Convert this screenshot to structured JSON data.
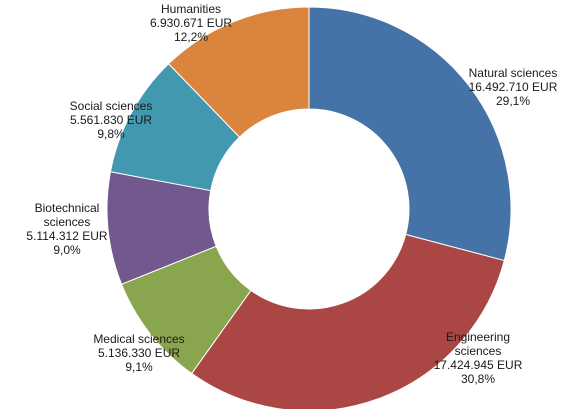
{
  "chart_data": {
    "type": "pie",
    "variant": "donut",
    "title": "",
    "legend": "none",
    "slices": [
      {
        "name": "Natural sciences",
        "amount_label": "16.492.710 EUR",
        "value": 16492710,
        "percent_label": "29,1%",
        "color": "#4572a7"
      },
      {
        "name": "Engineering sciences",
        "amount_label": "17.424.945 EUR",
        "value": 17424945,
        "percent_label": "30,8%",
        "color": "#aa4643"
      },
      {
        "name": "Medical sciences",
        "amount_label": "5.136.330 EUR",
        "value": 5136330,
        "percent_label": "9,1%",
        "color": "#89a54e"
      },
      {
        "name": "Biotechnical sciences",
        "amount_label": "5.114.312 EUR",
        "value": 5114312,
        "percent_label": "9,0%",
        "color": "#71588f"
      },
      {
        "name": "Social sciences",
        "amount_label": "5.561.830 EUR",
        "value": 5561830,
        "percent_label": "9,8%",
        "color": "#4198af"
      },
      {
        "name": "Humanities",
        "amount_label": "6.930.671 EUR",
        "value": 6930671,
        "percent_label": "12,2%",
        "color": "#db843d"
      }
    ],
    "labels": [
      {
        "lines": [
          "Natural sciences",
          "16.492.710 EUR",
          "29,1%"
        ]
      },
      {
        "lines": [
          "Engineering",
          "sciences",
          "17.424.945 EUR",
          "30,8%"
        ]
      },
      {
        "lines": [
          "Medical sciences",
          "5.136.330 EUR",
          "9,1%"
        ]
      },
      {
        "lines": [
          "Biotechnical",
          "sciences",
          "5.114.312 EUR",
          "9,0%"
        ]
      },
      {
        "lines": [
          "Social sciences",
          "5.561.830 EUR",
          "9,8%"
        ]
      },
      {
        "lines": [
          "Humanities",
          "6.930.671 EUR",
          "12,2%"
        ]
      }
    ]
  }
}
